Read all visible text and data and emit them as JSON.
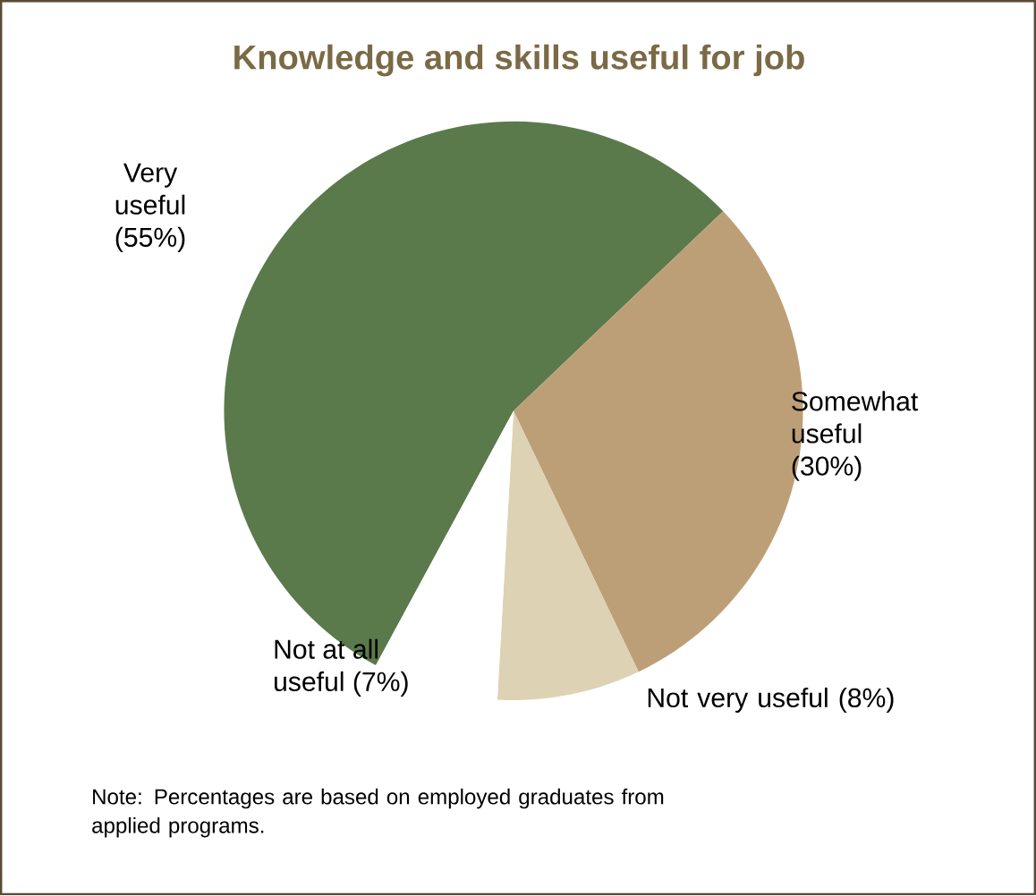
{
  "chart_data": {
    "type": "pie",
    "title": "Knowledge and skills useful for job",
    "categories": [
      "Very useful",
      "Somewhat useful",
      "Not very useful",
      "Not at all useful"
    ],
    "values": [
      55,
      30,
      8,
      7
    ],
    "colors": [
      "#5a7a4c",
      "#bd9f77",
      "#ddd2b3",
      "#ffffff"
    ],
    "value_labels": [
      "(55%)",
      "(30%)",
      "(8%)",
      "(7%)"
    ],
    "annotations": [
      "Note: Percentages are based on employed graduates from applied programs."
    ]
  }
}
